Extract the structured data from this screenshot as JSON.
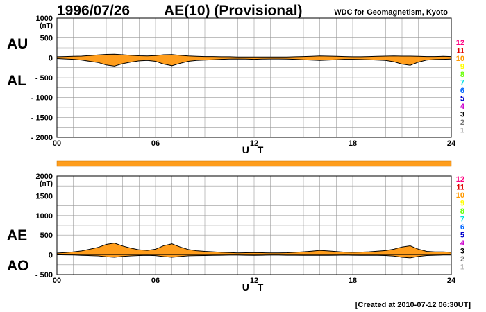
{
  "header": {
    "date": "1996/07/26",
    "title": "AE(10) (Provisional)",
    "organization": "WDC for Geomagnetism, Kyoto"
  },
  "footer": {
    "created": "[Created at 2010-07-12 06:30UT]"
  },
  "legend": {
    "items": [
      {
        "label": "12",
        "color": "#ff0080"
      },
      {
        "label": "11",
        "color": "#e00000"
      },
      {
        "label": "10",
        "color": "#ff9900"
      },
      {
        "label": "9",
        "color": "#ffff00"
      },
      {
        "label": "8",
        "color": "#66ff00"
      },
      {
        "label": "7",
        "color": "#00e0e0"
      },
      {
        "label": "6",
        "color": "#0066ff"
      },
      {
        "label": "5",
        "color": "#0000cc"
      },
      {
        "label": "4",
        "color": "#cc00cc"
      },
      {
        "label": "3",
        "color": "#000000"
      },
      {
        "label": "2",
        "color": "#777777"
      },
      {
        "label": "1",
        "color": "#bbbbbb"
      }
    ]
  },
  "colors": {
    "fill": "#ff9d1c",
    "line": "#000000",
    "grid": "#999999",
    "station_bar": "#ff9d1c"
  },
  "chart_data": [
    {
      "type": "area",
      "upper_label": "AU",
      "lower_label": "AL",
      "unit": "(nT)",
      "xlabel": "U T",
      "xlim": [
        0,
        24
      ],
      "xticks": [
        "00",
        "06",
        "12",
        "18",
        "24"
      ],
      "ylim": [
        -2000,
        1000
      ],
      "yticks": [
        "1000",
        "500",
        "0",
        "- 500",
        "- 1000",
        "- 1500",
        "- 2000"
      ],
      "grid": true,
      "x": [
        0,
        0.5,
        1,
        1.5,
        2,
        2.5,
        3,
        3.5,
        4,
        4.5,
        5,
        5.5,
        6,
        6.5,
        7,
        7.5,
        8,
        8.5,
        9,
        9.5,
        10,
        10.5,
        11,
        11.5,
        12,
        12.5,
        13,
        13.5,
        14,
        14.5,
        15,
        15.5,
        16,
        16.5,
        17,
        17.5,
        18,
        18.5,
        19,
        19.5,
        20,
        20.5,
        21,
        21.5,
        22,
        22.5,
        23,
        23.5,
        24
      ],
      "series": [
        {
          "name": "AU",
          "values": [
            25,
            30,
            35,
            40,
            55,
            70,
            85,
            90,
            75,
            60,
            50,
            45,
            55,
            75,
            80,
            60,
            45,
            35,
            30,
            30,
            25,
            25,
            20,
            20,
            20,
            20,
            20,
            20,
            20,
            25,
            30,
            35,
            45,
            40,
            35,
            30,
            25,
            25,
            30,
            35,
            40,
            45,
            40,
            40,
            35,
            30,
            30,
            35,
            30
          ]
        },
        {
          "name": "AL",
          "values": [
            -20,
            -30,
            -40,
            -60,
            -90,
            -120,
            -180,
            -210,
            -150,
            -110,
            -80,
            -70,
            -90,
            -160,
            -200,
            -140,
            -90,
            -70,
            -60,
            -50,
            -40,
            -35,
            -30,
            -35,
            -40,
            -35,
            -30,
            -30,
            -35,
            -40,
            -50,
            -60,
            -70,
            -60,
            -50,
            -40,
            -40,
            -45,
            -50,
            -60,
            -70,
            -100,
            -160,
            -190,
            -110,
            -60,
            -45,
            -40,
            -35
          ]
        }
      ]
    },
    {
      "type": "area",
      "upper_label": "AE",
      "lower_label": "AO",
      "unit": "(nT)",
      "xlabel": "U T",
      "xlim": [
        0,
        24
      ],
      "xticks": [
        "00",
        "06",
        "12",
        "18",
        "24"
      ],
      "ylim": [
        -500,
        2000
      ],
      "yticks": [
        "2000",
        "1500",
        "1000",
        "500",
        "0",
        "- 500"
      ],
      "grid": true,
      "x": [
        0,
        0.5,
        1,
        1.5,
        2,
        2.5,
        3,
        3.5,
        4,
        4.5,
        5,
        5.5,
        6,
        6.5,
        7,
        7.5,
        8,
        8.5,
        9,
        9.5,
        10,
        10.5,
        11,
        11.5,
        12,
        12.5,
        13,
        13.5,
        14,
        14.5,
        15,
        15.5,
        16,
        16.5,
        17,
        17.5,
        18,
        18.5,
        19,
        19.5,
        20,
        20.5,
        21,
        21.5,
        22,
        22.5,
        23,
        23.5,
        24
      ],
      "series": [
        {
          "name": "AE",
          "values": [
            45,
            60,
            75,
            100,
            145,
            190,
            265,
            300,
            225,
            170,
            130,
            115,
            145,
            235,
            280,
            200,
            135,
            105,
            90,
            80,
            65,
            60,
            50,
            55,
            60,
            55,
            50,
            50,
            55,
            65,
            80,
            95,
            115,
            100,
            85,
            70,
            65,
            70,
            80,
            95,
            110,
            145,
            200,
            230,
            145,
            90,
            75,
            75,
            65
          ]
        },
        {
          "name": "AO",
          "values": [
            3,
            0,
            -3,
            -10,
            -18,
            -25,
            -48,
            -60,
            -38,
            -25,
            -15,
            -13,
            -18,
            -43,
            -60,
            -40,
            -23,
            -18,
            -15,
            -10,
            -8,
            -5,
            -5,
            -8,
            -10,
            -8,
            -5,
            -5,
            -8,
            -8,
            -10,
            -13,
            -13,
            -10,
            -8,
            -5,
            -8,
            -10,
            -10,
            -13,
            -15,
            -28,
            -60,
            -75,
            -38,
            -15,
            -8,
            -3,
            -3
          ]
        }
      ]
    }
  ]
}
